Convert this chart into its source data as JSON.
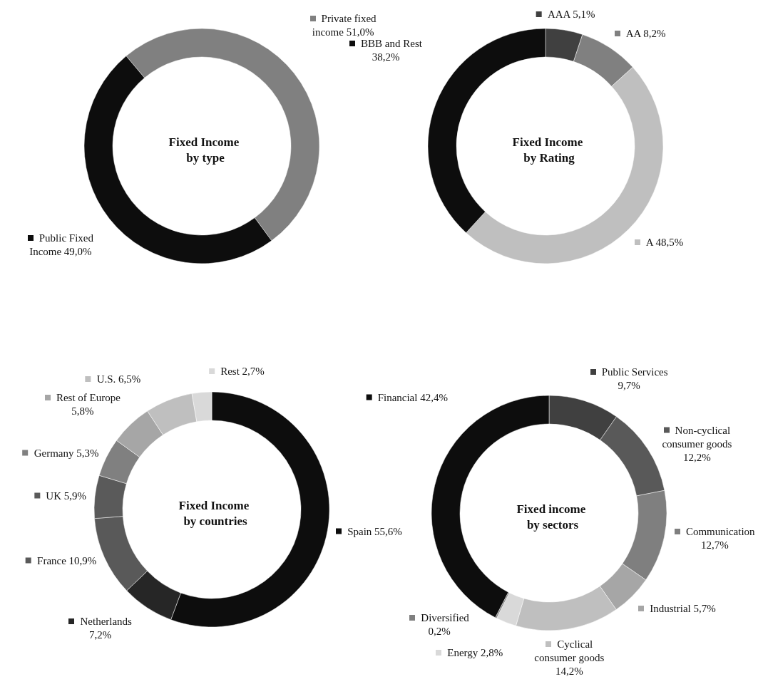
{
  "chart_data": [
    {
      "type": "donut",
      "title": "Fixed Income by type",
      "categories": [
        "Private fixed income",
        "Public Fixed Income"
      ],
      "values": [
        51.0,
        49.0
      ],
      "value_labels": [
        "51,0%",
        "49,0%"
      ],
      "colors": [
        "#808080",
        "#0d0d0d"
      ],
      "legend": true
    },
    {
      "type": "donut",
      "title": "Fixed Income by Rating",
      "categories": [
        "AAA",
        "AA",
        "A",
        "BBB and Rest"
      ],
      "values": [
        5.1,
        8.2,
        48.5,
        38.2
      ],
      "value_labels": [
        "5,1%",
        "8,2%",
        "48,5%",
        "38,2%"
      ],
      "colors": [
        "#404040",
        "#808080",
        "#bfbfbf",
        "#0d0d0d"
      ],
      "legend": true
    },
    {
      "type": "donut",
      "title": "Fixed Income by countries",
      "categories": [
        "Spain",
        "Netherlands",
        "France",
        "UK",
        "Germany",
        "Rest of Europe",
        "U.S.",
        "Rest"
      ],
      "values": [
        55.6,
        7.2,
        10.9,
        5.9,
        5.3,
        5.8,
        6.5,
        2.7
      ],
      "value_labels": [
        "55,6%",
        "7,2%",
        "10,9%",
        "5,9%",
        "5,3%",
        "5,8%",
        "6,5%",
        "2,7%"
      ],
      "colors": [
        "#0d0d0d",
        "#262626",
        "#595959",
        "#5a5a5a",
        "#808080",
        "#a6a6a6",
        "#bfbfbf",
        "#d9d9d9"
      ],
      "legend": true
    },
    {
      "type": "donut",
      "title": "Fixed income by sectors",
      "categories": [
        "Public Services",
        "Non-cyclical consumer goods",
        "Communication",
        "Industrial",
        "Cyclical consumer goods",
        "Energy",
        "Diversified",
        "Financial"
      ],
      "values": [
        9.7,
        12.2,
        12.7,
        5.7,
        14.2,
        2.8,
        0.2,
        42.4
      ],
      "value_labels": [
        "9,7%",
        "12,2%",
        "12,7%",
        "5,7%",
        "14,2%",
        "2,8%",
        "0,2%",
        "42,4%"
      ],
      "colors": [
        "#404040",
        "#595959",
        "#7f7f7f",
        "#a6a6a6",
        "#bfbfbf",
        "#d9d9d9",
        "#7f7f7f",
        "#0d0d0d"
      ],
      "legend": true
    }
  ]
}
